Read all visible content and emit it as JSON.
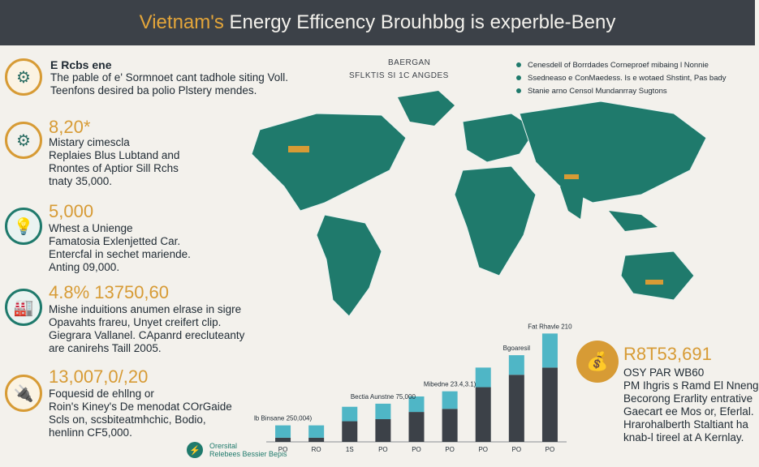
{
  "title": {
    "prefix": "Vietnam's",
    "rest": "Energy Efficency Brouhbbg is experble-Beny"
  },
  "intro": {
    "heading": "E Rcbs ene",
    "lines": [
      "The pable of e' Sormnoet cant tadhole siting Voll.",
      "Teenfons desired ba polio Plstery mendes."
    ]
  },
  "map_labels": {
    "top": "BAERGAN",
    "sub": "SFLKTIS SI 1C ANGDES"
  },
  "legend": [
    "Cenesdell of Borrdades Corneproef mibaing l Nonnie",
    "Ssedneaso e ConMaedess. Is e wotaed Shstint, Pas bady",
    "Stanie arno Censol Mundanrray Sugtons"
  ],
  "stats": [
    {
      "icon": "gear-icon",
      "num": "8,20*",
      "lines": [
        "Mistary cimescla",
        "Replaies Blus Lubtand and",
        "Rnontes of Aptior Sill Rchs",
        "tnaty 35,000."
      ]
    },
    {
      "icon": "lightbulb-icon",
      "num": "5,000",
      "lines": [
        "Whest a Unienge",
        "Famatosia Exlenjetted Car.",
        "Entercfal in sechet mariende.",
        "Anting 09,000."
      ]
    },
    {
      "icon": "factory-icon",
      "num": "4.8% 13750,60",
      "lines": [
        "Mishe induitions anumen elrase in sigre",
        "Opavahts frareu, Unyet creifert clip.",
        "Giegrara Vallanel. CApanrd erecluteanty",
        "are canirehs Taill 2005."
      ]
    },
    {
      "icon": "plug-icon",
      "num": "13,007,0/,20",
      "lines": [
        "Foquesid de ehllng or",
        "Roin's Kiney's De menodat COrGaide",
        "Scls on, scsbiteatmhchic, Bodio,",
        "henlinn CF5,000."
      ]
    }
  ],
  "chart_data": {
    "type": "bar",
    "categories": [
      "PO",
      "RO",
      "1S",
      "PO",
      "PO",
      "PO",
      "PO",
      "PO",
      "PO"
    ],
    "series": [
      {
        "name": "base",
        "values": [
          4,
          4,
          20,
          22,
          29,
          32,
          53,
          65,
          72
        ]
      },
      {
        "name": "top",
        "values": [
          12,
          12,
          14,
          15,
          15,
          17,
          19,
          19,
          33
        ]
      }
    ],
    "annotations": [
      {
        "bar": 0,
        "text": "lb Binsane 250,004)"
      },
      {
        "bar": 3,
        "text": "Bectia Aunstne 75,000"
      },
      {
        "bar": 5,
        "text": "Mibedne 23.4,3.1)"
      },
      {
        "bar": 7,
        "text": "Bgoaresil"
      },
      {
        "bar": 8,
        "text": "Fat Rhavle 210"
      }
    ],
    "ylim": [
      0,
      110
    ]
  },
  "right": {
    "num": "R8T53,691",
    "lines": [
      "OSY PAR WB60",
      "PM Ihgris s Ramd El Nneng",
      "Becorong Erarlity entrative",
      "Gaecart ee Mos or, Eferlal.",
      "Hrarohalberth Staltiant ha",
      "knab-l tireel at A Kernlay."
    ]
  },
  "footer": {
    "line1": "Orersital",
    "line2": "Relebees Bessier Bepis"
  },
  "colors": {
    "teal": "#1f7a6c",
    "gold": "#d79b35",
    "cyan": "#4fb6c6",
    "dark": "#3c4148"
  }
}
